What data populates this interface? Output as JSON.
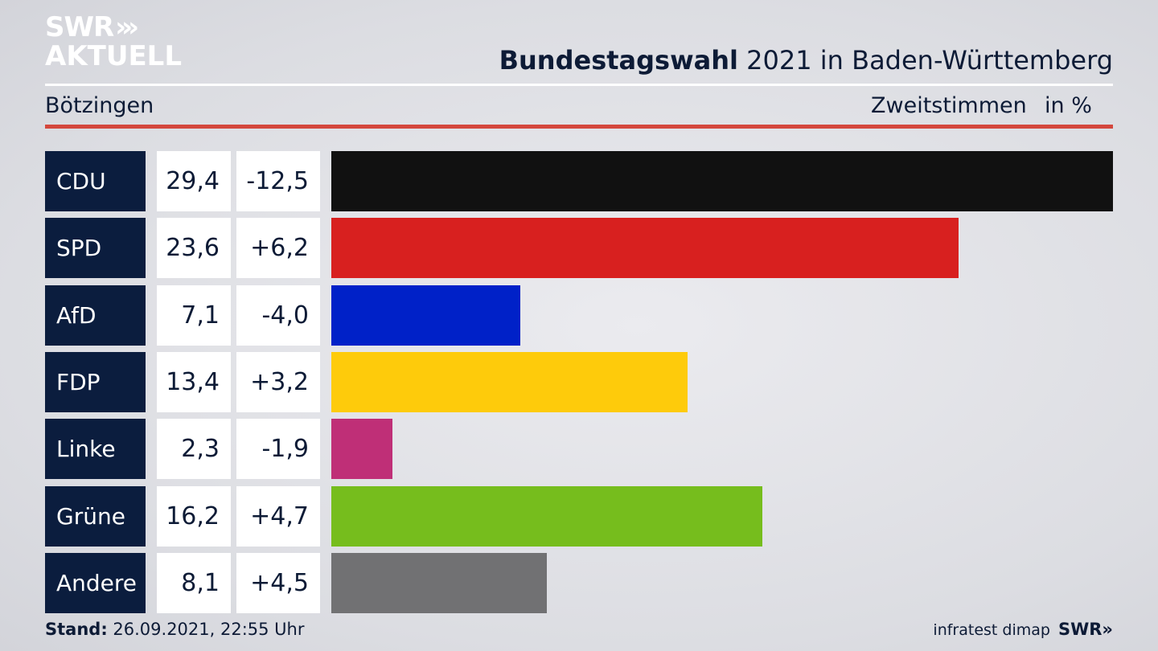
{
  "logo": {
    "line1": "SWR",
    "arrows": "»»",
    "line2": "AKTUELL"
  },
  "header": {
    "title_bold": "Bundestagswahl",
    "title_rest": " 2021 in Baden-Württemberg",
    "region": "Bötzingen",
    "vote_type": "Zweitstimmen",
    "unit": "in %"
  },
  "chart_data": {
    "type": "bar",
    "orientation": "horizontal",
    "categories": [
      "CDU",
      "SPD",
      "AfD",
      "FDP",
      "Linke",
      "Grüne",
      "Andere"
    ],
    "values": [
      29.4,
      23.6,
      7.1,
      13.4,
      2.3,
      16.2,
      8.1
    ],
    "value_labels": [
      "29,4",
      "23,6",
      "7,1",
      "13,4",
      "2,3",
      "16,2",
      "8,1"
    ],
    "diff_labels": [
      "-12,5",
      "+6,2",
      "-4,0",
      "+3,2",
      "-1,9",
      "+4,7",
      "+4,5"
    ],
    "colors": [
      "#111111",
      "#d8201f",
      "#0021c8",
      "#fecb0b",
      "#bf2f77",
      "#76bd1d",
      "#717173"
    ],
    "xlim": [
      0,
      29.4
    ]
  },
  "footer": {
    "stand_label": "Stand:",
    "stand_value": " 26.09.2021, 22:55 Uhr",
    "source": "infratest dimap",
    "brand": "SWR»"
  }
}
